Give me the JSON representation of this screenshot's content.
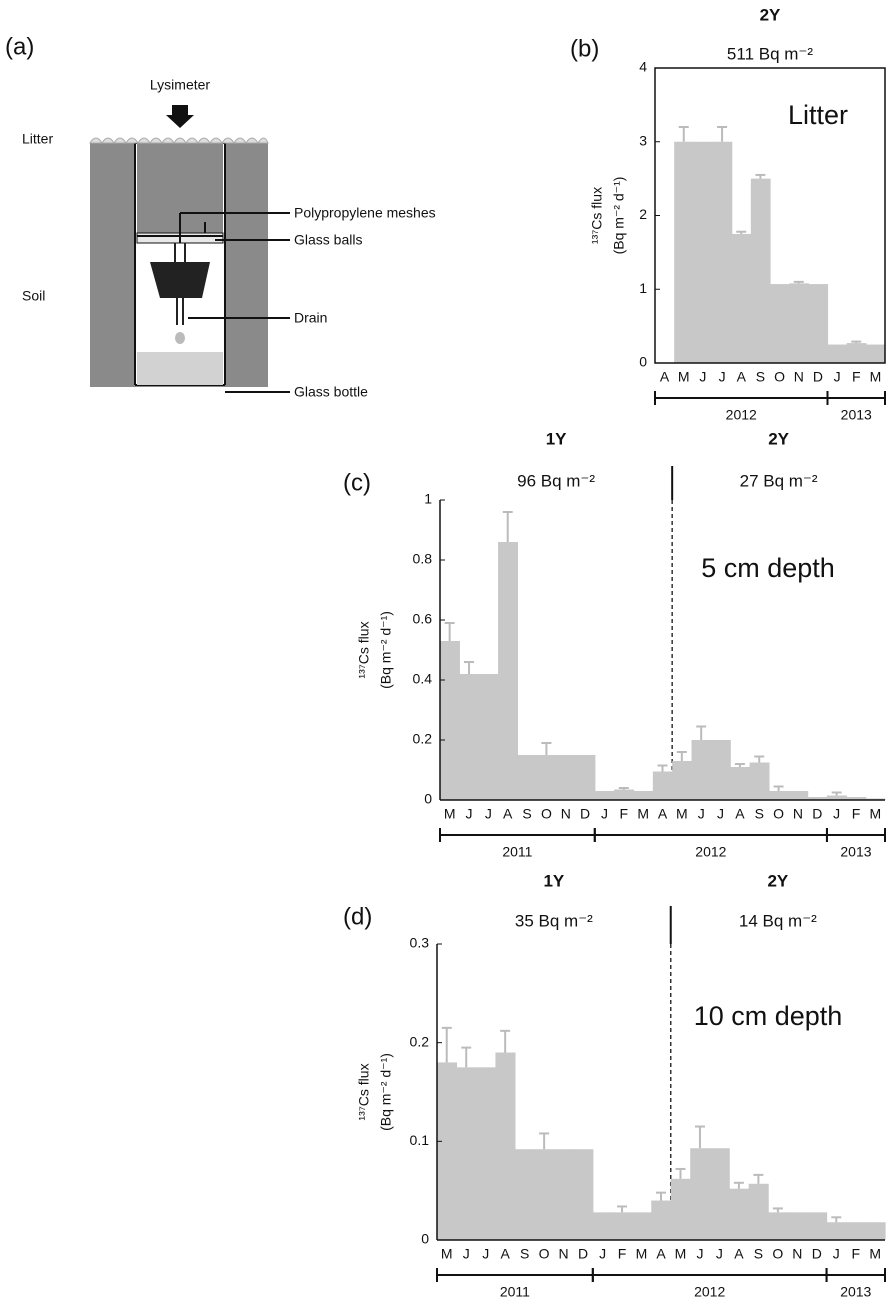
{
  "diagram": {
    "panel_label": "(a)",
    "labels": {
      "lysimeter": "Lysimeter",
      "litter": "Litter",
      "meshes": "Polypropylene meshes",
      "balls": "Glass balls",
      "soil": "Soil",
      "drain": "Drain",
      "bottle": "Glass bottle"
    }
  },
  "chart_data": [
    {
      "type": "bar",
      "panel_label": "(b)",
      "title": "2Y",
      "subtitle": "511 Bq m⁻²",
      "annotation": "Litter",
      "ylabel": [
        "¹³⁷Cs flux",
        "(Bq m⁻² d⁻¹)"
      ],
      "categories": [
        "A",
        "M",
        "J",
        "J",
        "A",
        "S",
        "O",
        "N",
        "D",
        "J",
        "F",
        "M"
      ],
      "values": [
        null,
        3.0,
        3.0,
        3.0,
        1.75,
        2.5,
        1.07,
        1.08,
        1.07,
        0.25,
        0.27,
        0.25
      ],
      "errors": [
        null,
        0.2,
        null,
        0.2,
        0.03,
        0.05,
        null,
        0.02,
        null,
        null,
        0.02,
        null
      ],
      "color": "#c8c8c8",
      "frame": true,
      "ylim": [
        0,
        4
      ],
      "yticks": [
        0,
        1,
        2,
        3,
        4
      ],
      "years": [
        {
          "label": "2012",
          "start": 0,
          "end": 8
        },
        {
          "label": "2013",
          "start": 9,
          "end": 11
        }
      ]
    },
    {
      "type": "bar",
      "panel_label": "(c)",
      "annotation": "5 cm depth",
      "ylabel": [
        "¹³⁷Cs flux",
        "(Bq m⁻² d⁻¹)"
      ],
      "categories": [
        "M",
        "J",
        "J",
        "A",
        "S",
        "O",
        "N",
        "D",
        "J",
        "F",
        "M",
        "A",
        "M",
        "J",
        "J",
        "A",
        "S",
        "O",
        "N",
        "D",
        "J",
        "F",
        "M"
      ],
      "values": [
        0.53,
        0.42,
        0.42,
        0.86,
        0.15,
        0.15,
        0.15,
        0.15,
        0.03,
        0.035,
        0.03,
        0.095,
        0.13,
        0.2,
        0.2,
        0.11,
        0.125,
        0.03,
        0.03,
        0.01,
        0.015,
        0.01,
        0.005
      ],
      "errors": [
        0.06,
        0.04,
        null,
        0.1,
        null,
        0.04,
        null,
        null,
        null,
        0.005,
        null,
        0.02,
        0.03,
        0.045,
        null,
        0.01,
        0.02,
        0.015,
        null,
        null,
        0.01,
        null,
        null
      ],
      "color": "#c8c8c8",
      "frame": false,
      "ylim": [
        0,
        1
      ],
      "yticks": [
        0,
        0.2,
        0.4,
        0.6,
        0.8,
        1
      ],
      "periods": [
        {
          "title": "1Y",
          "subtitle": "96 Bq m⁻²",
          "start": 0,
          "end": 11
        },
        {
          "title": "2Y",
          "subtitle": "27 Bq m⁻²",
          "start": 12,
          "end": 22
        }
      ],
      "years": [
        {
          "label": "2011",
          "start": 0,
          "end": 7
        },
        {
          "label": "2012",
          "start": 8,
          "end": 19
        },
        {
          "label": "2013",
          "start": 20,
          "end": 22
        }
      ]
    },
    {
      "type": "bar",
      "panel_label": "(d)",
      "annotation": "10 cm depth",
      "ylabel": [
        "¹³⁷Cs flux",
        "(Bq m⁻² d⁻¹)"
      ],
      "categories": [
        "M",
        "J",
        "J",
        "A",
        "S",
        "O",
        "N",
        "D",
        "J",
        "F",
        "M",
        "A",
        "M",
        "J",
        "J",
        "A",
        "S",
        "O",
        "N",
        "D",
        "J",
        "F",
        "M"
      ],
      "values": [
        0.18,
        0.175,
        0.175,
        0.19,
        0.092,
        0.092,
        0.092,
        0.092,
        0.028,
        0.028,
        0.028,
        0.04,
        0.062,
        0.093,
        0.093,
        0.052,
        0.057,
        0.028,
        0.028,
        0.028,
        0.018,
        0.018,
        0.018
      ],
      "errors": [
        0.035,
        0.02,
        null,
        0.022,
        null,
        0.016,
        null,
        null,
        null,
        0.006,
        null,
        0.008,
        0.01,
        0.022,
        null,
        0.006,
        0.009,
        0.004,
        null,
        null,
        0.005,
        null,
        null
      ],
      "color": "#c8c8c8",
      "frame": false,
      "ylim": [
        0,
        0.3
      ],
      "yticks": [
        0,
        0.1,
        0.2,
        0.3
      ],
      "periods": [
        {
          "title": "1Y",
          "subtitle": "35 Bq m⁻²",
          "start": 0,
          "end": 11
        },
        {
          "title": "2Y",
          "subtitle": "14 Bq m⁻²",
          "start": 12,
          "end": 22
        }
      ],
      "years": [
        {
          "label": "2011",
          "start": 0,
          "end": 7
        },
        {
          "label": "2012",
          "start": 8,
          "end": 19
        },
        {
          "label": "2013",
          "start": 20,
          "end": 22
        }
      ]
    }
  ]
}
